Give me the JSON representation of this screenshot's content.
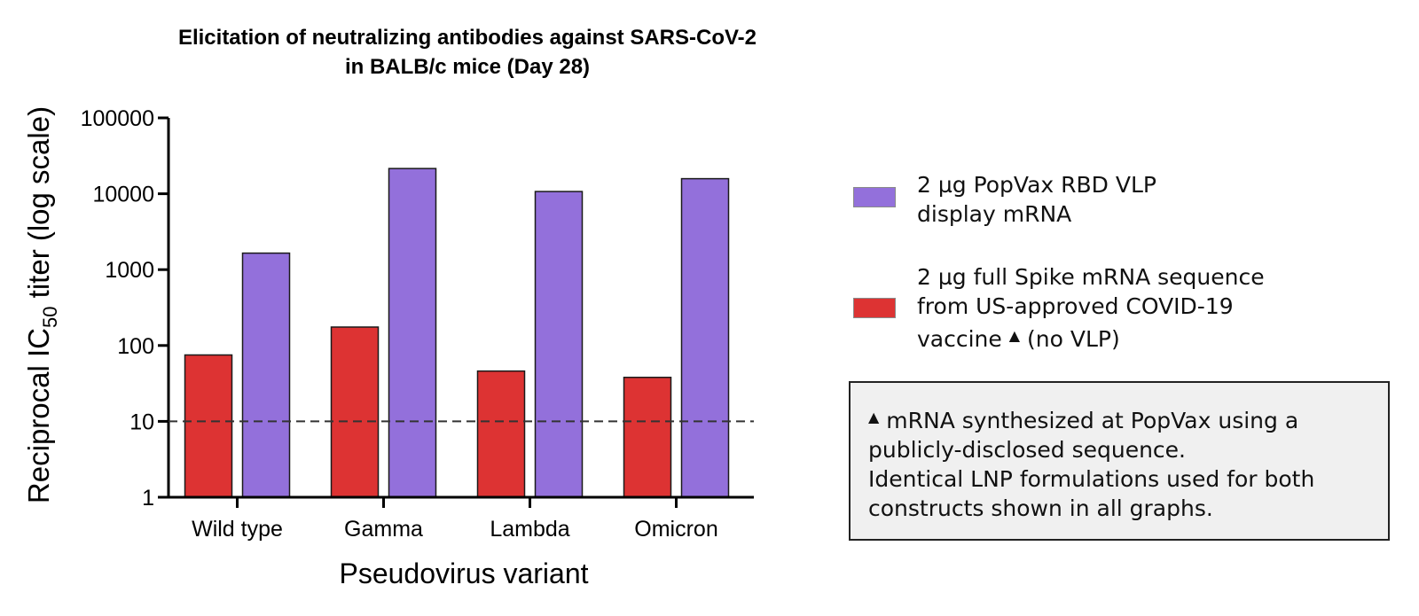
{
  "chart_data": {
    "type": "bar",
    "title_lines": [
      "Elicitation of neutralizing antibodies against SARS-CoV-2",
      "in BALB/c mice (Day 28)"
    ],
    "ylabel": {
      "main": "Reciprocal IC",
      "sub": "50",
      "rest": " titer (log scale)"
    },
    "xlabel": "Pseudovirus variant",
    "yscale": "log",
    "ylim": [
      1,
      100000
    ],
    "yticks": [
      1,
      10,
      100,
      1000,
      10000,
      100000
    ],
    "ytick_labels": [
      "1",
      "10",
      "100",
      "1000",
      "10000",
      "100000"
    ],
    "threshold_line": 10,
    "categories": [
      "Wild type",
      "Gamma",
      "Lambda",
      "Omicron"
    ],
    "series": [
      {
        "name": "2 µg full Spike mRNA sequence from US-approved COVID-19 vaccine (no VLP)",
        "color": "#dd3333",
        "values": [
          75,
          175,
          46,
          38
        ]
      },
      {
        "name": "2 µg PopVax RBD VLP display mRNA",
        "color": "#9370db",
        "values": [
          1650,
          21500,
          10700,
          15800
        ]
      }
    ]
  },
  "legend": {
    "items": [
      {
        "lines": [
          "2 µg PopVax RBD VLP",
          "display mRNA"
        ],
        "color": "#9370db"
      },
      {
        "lines": [
          "2 µg full Spike mRNA sequence",
          "from US-approved COVID-19",
          "vaccine",
          "(no VLP)"
        ],
        "color": "#dd3333"
      }
    ],
    "marker_glyph": "▲"
  },
  "note": {
    "line1": "mRNA synthesized at PopVax using a",
    "line2": "publicly-disclosed sequence.",
    "line3": "Identical LNP formulations used for both",
    "line4": "constructs shown in all graphs."
  }
}
